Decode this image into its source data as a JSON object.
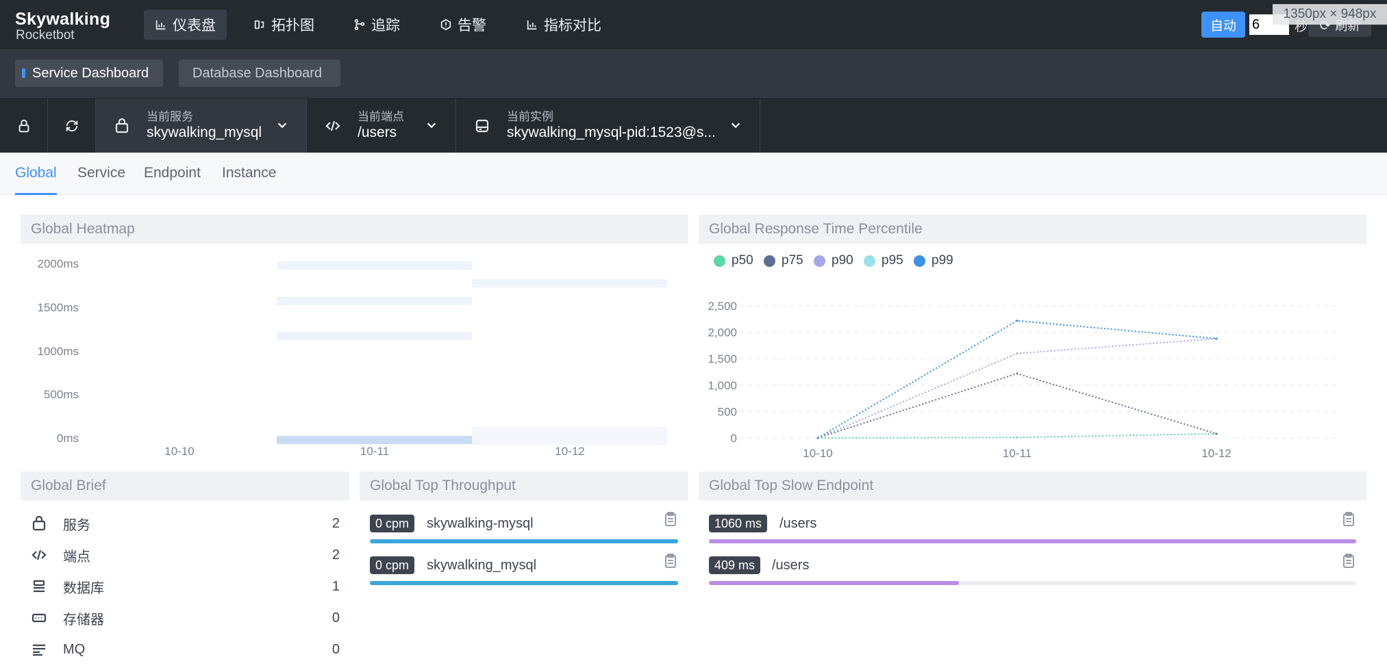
{
  "logo": {
    "line1": "Skywalking",
    "line2": "Rocketbot"
  },
  "nav": [
    {
      "label": "仪表盘",
      "icon": "chart-icon"
    },
    {
      "label": "拓扑图",
      "icon": "topology-icon"
    },
    {
      "label": "追踪",
      "icon": "trace-icon"
    },
    {
      "label": "告警",
      "icon": "alarm-icon"
    },
    {
      "label": "指标对比",
      "icon": "compare-icon"
    }
  ],
  "refresh": {
    "auto_label": "自动",
    "interval_value": "6",
    "unit_label": "秒",
    "refresh_label": "刷新"
  },
  "size_overlay": "1350px × 948px",
  "dashboard_tabs": [
    "Service Dashboard",
    "Database Dashboard"
  ],
  "selectors": {
    "service": {
      "label": "当前服务",
      "value": "skywalking_mysql"
    },
    "endpoint": {
      "label": "当前端点",
      "value": "/users"
    },
    "instance": {
      "label": "当前实例",
      "value": "skywalking_mysql-pid:1523@s..."
    }
  },
  "sub_tabs": [
    "Global",
    "Service",
    "Endpoint",
    "Instance"
  ],
  "heatmap": {
    "title": "Global Heatmap",
    "y_ticks": [
      "2000ms",
      "1500ms",
      "1000ms",
      "500ms",
      "0ms"
    ],
    "x_ticks": [
      "10-10",
      "10-11",
      "10-12"
    ]
  },
  "percentile": {
    "title": "Global Response Time Percentile",
    "legend": [
      {
        "name": "p50",
        "color": "#5ad8a6"
      },
      {
        "name": "p75",
        "color": "#5b6e96"
      },
      {
        "name": "p90",
        "color": "#a2a8ea"
      },
      {
        "name": "p95",
        "color": "#9ae0eb"
      },
      {
        "name": "p99",
        "color": "#3d92e6"
      }
    ],
    "y_ticks": [
      "2,500",
      "2,000",
      "1,500",
      "1,000",
      "500",
      "0"
    ],
    "x_ticks": [
      "10-10",
      "10-11",
      "10-12"
    ]
  },
  "chart_data": {
    "type": "line",
    "title": "Global Response Time Percentile",
    "x": [
      "10-10",
      "10-11",
      "10-12"
    ],
    "ylim": [
      0,
      2500
    ],
    "series": [
      {
        "name": "p50",
        "values": [
          0,
          10,
          80
        ]
      },
      {
        "name": "p75",
        "values": [
          0,
          1220,
          80
        ]
      },
      {
        "name": "p90",
        "values": [
          0,
          1600,
          1880
        ]
      },
      {
        "name": "p95",
        "values": [
          0,
          2220,
          1880
        ]
      },
      {
        "name": "p99",
        "values": [
          0,
          2220,
          1880
        ]
      }
    ]
  },
  "brief": {
    "title": "Global Brief",
    "items": [
      {
        "label": "服务",
        "value": "2",
        "icon": "service-icon"
      },
      {
        "label": "端点",
        "value": "2",
        "icon": "code-icon"
      },
      {
        "label": "数据库",
        "value": "1",
        "icon": "database-icon"
      },
      {
        "label": "存储器",
        "value": "0",
        "icon": "cache-icon"
      },
      {
        "label": "MQ",
        "value": "0",
        "icon": "mq-icon"
      }
    ]
  },
  "throughput": {
    "title": "Global Top Throughput",
    "items": [
      {
        "badge": "0 cpm",
        "name": "skywalking-mysql",
        "fraction": 1.0
      },
      {
        "badge": "0 cpm",
        "name": "skywalking_mysql",
        "fraction": 1.0
      }
    ]
  },
  "slow": {
    "title": "Global Top Slow Endpoint",
    "items": [
      {
        "badge": "1060 ms",
        "name": "/users",
        "fraction": 1.0
      },
      {
        "badge": "409 ms",
        "name": "/users",
        "fraction": 0.386
      }
    ]
  },
  "colors": {
    "accent": "#3d92ff",
    "throughput_bar": "#3aa7dc",
    "slow_bar": "#b98ee6"
  }
}
